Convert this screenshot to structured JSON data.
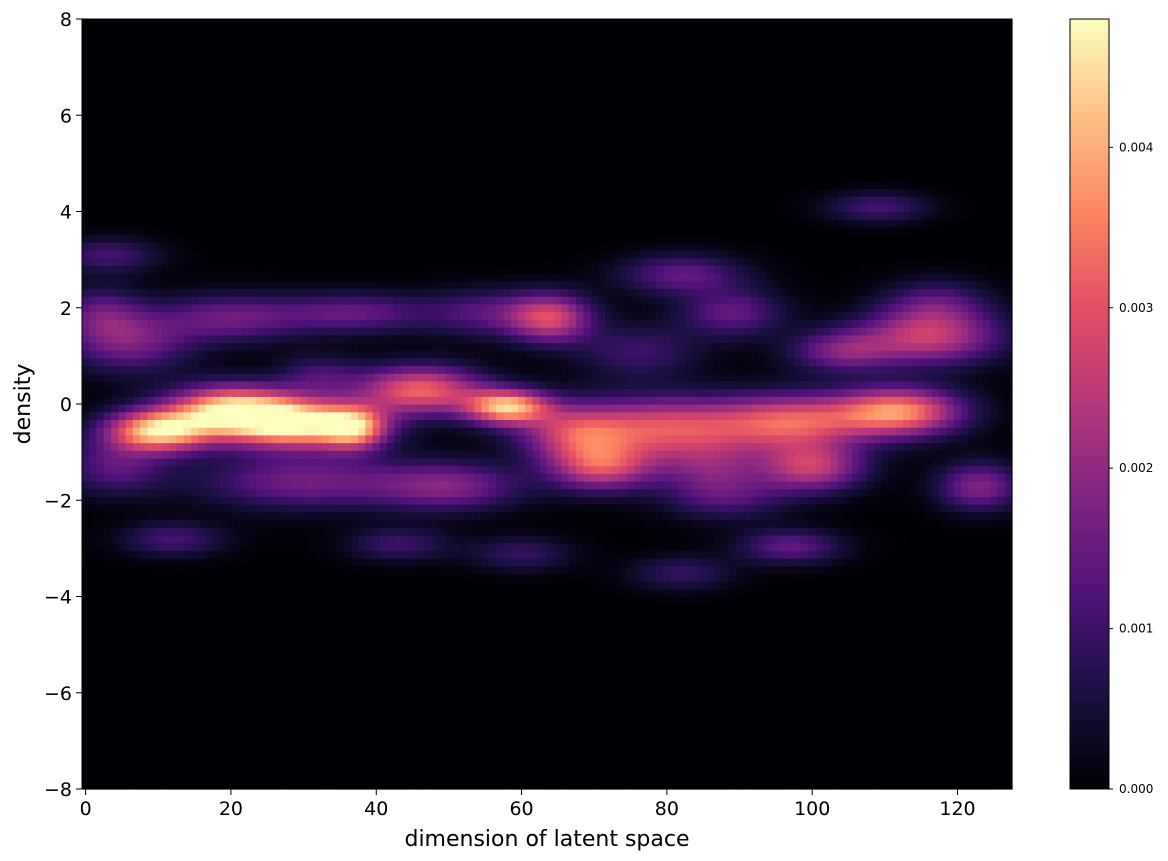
{
  "chart_data": {
    "type": "heatmap",
    "xlabel": "dimension of latent space",
    "ylabel": "density",
    "xlim": [
      -0.5,
      127.5
    ],
    "ylim": [
      -8,
      8
    ],
    "x_ticks": [
      0,
      20,
      40,
      60,
      80,
      100,
      120
    ],
    "y_ticks": [
      -8,
      -6,
      -4,
      -2,
      0,
      2,
      4,
      6,
      8
    ],
    "x_tick_labels": [
      "0",
      "20",
      "40",
      "60",
      "80",
      "100",
      "120"
    ],
    "y_tick_labels": [
      "−8",
      "−6",
      "−4",
      "−2",
      "0",
      "2",
      "4",
      "6",
      "8"
    ],
    "colormap": "magma",
    "colorbar": {
      "range": [
        0,
        0.0048
      ],
      "ticks": [
        0,
        0.001,
        0.002,
        0.003,
        0.004
      ],
      "tick_labels": [
        "0.000",
        "0.001",
        "0.002",
        "0.003",
        "0.004"
      ]
    },
    "density_blobs": [
      {
        "x": 3,
        "y": 3.1,
        "sx": 5,
        "sy": 0.25,
        "amp": 0.0011
      },
      {
        "x": 2,
        "y": 1.9,
        "sx": 4,
        "sy": 0.4,
        "amp": 0.0012
      },
      {
        "x": 6,
        "y": 1.3,
        "sx": 6,
        "sy": 0.45,
        "amp": 0.0016
      },
      {
        "x": 20,
        "y": 1.8,
        "sx": 7,
        "sy": 0.35,
        "amp": 0.0015
      },
      {
        "x": 37,
        "y": 1.9,
        "sx": 7,
        "sy": 0.3,
        "amp": 0.0014
      },
      {
        "x": 32,
        "y": 0.6,
        "sx": 4,
        "sy": 0.3,
        "amp": 0.001
      },
      {
        "x": 64,
        "y": 1.8,
        "sx": 4,
        "sy": 0.35,
        "amp": 0.0026
      },
      {
        "x": 55,
        "y": 1.9,
        "sx": 6,
        "sy": 0.35,
        "amp": 0.0012
      },
      {
        "x": 82,
        "y": 2.7,
        "sx": 6,
        "sy": 0.3,
        "amp": 0.0014
      },
      {
        "x": 89,
        "y": 1.9,
        "sx": 5,
        "sy": 0.35,
        "amp": 0.0014
      },
      {
        "x": 76,
        "y": 1.1,
        "sx": 6,
        "sy": 0.4,
        "amp": 0.001
      },
      {
        "x": 109,
        "y": 4.1,
        "sx": 5,
        "sy": 0.22,
        "amp": 0.0011
      },
      {
        "x": 117,
        "y": 2.1,
        "sx": 5,
        "sy": 0.35,
        "amp": 0.0012
      },
      {
        "x": 116,
        "y": 1.4,
        "sx": 7,
        "sy": 0.4,
        "amp": 0.0025
      },
      {
        "x": 104,
        "y": 1.1,
        "sx": 5,
        "sy": 0.3,
        "amp": 0.0016
      },
      {
        "x": 46,
        "y": 0.3,
        "sx": 6,
        "sy": 0.35,
        "amp": 0.0032
      },
      {
        "x": 58,
        "y": -0.05,
        "sx": 4,
        "sy": 0.25,
        "amp": 0.004
      },
      {
        "x": 10,
        "y": -0.55,
        "sx": 5,
        "sy": 0.3,
        "amp": 0.0043
      },
      {
        "x": 20,
        "y": -0.1,
        "sx": 6,
        "sy": 0.35,
        "amp": 0.004
      },
      {
        "x": 29,
        "y": -0.4,
        "sx": 7,
        "sy": 0.35,
        "amp": 0.0046
      },
      {
        "x": 37,
        "y": -0.5,
        "sx": 3,
        "sy": 0.3,
        "amp": 0.0028
      },
      {
        "x": 80,
        "y": -0.5,
        "sx": 10,
        "sy": 0.45,
        "amp": 0.003
      },
      {
        "x": 98,
        "y": -0.35,
        "sx": 7,
        "sy": 0.4,
        "amp": 0.0026
      },
      {
        "x": 112,
        "y": -0.15,
        "sx": 6,
        "sy": 0.35,
        "amp": 0.0036
      },
      {
        "x": 67,
        "y": -0.6,
        "sx": 5,
        "sy": 0.4,
        "amp": 0.0018
      },
      {
        "x": 4,
        "y": -1.3,
        "sx": 5,
        "sy": 0.4,
        "amp": 0.0013
      },
      {
        "x": 30,
        "y": -1.6,
        "sx": 10,
        "sy": 0.4,
        "amp": 0.0016
      },
      {
        "x": 50,
        "y": -1.7,
        "sx": 7,
        "sy": 0.35,
        "amp": 0.0017
      },
      {
        "x": 71,
        "y": -1.3,
        "sx": 5,
        "sy": 0.35,
        "amp": 0.0026
      },
      {
        "x": 86,
        "y": -1.3,
        "sx": 5,
        "sy": 0.35,
        "amp": 0.0012
      },
      {
        "x": 100,
        "y": -1.3,
        "sx": 5,
        "sy": 0.35,
        "amp": 0.0025
      },
      {
        "x": 123,
        "y": -1.7,
        "sx": 4,
        "sy": 0.35,
        "amp": 0.0018
      },
      {
        "x": 88,
        "y": -1.9,
        "sx": 6,
        "sy": 0.35,
        "amp": 0.0012
      },
      {
        "x": 12,
        "y": -2.8,
        "sx": 5,
        "sy": 0.25,
        "amp": 0.0011
      },
      {
        "x": 43,
        "y": -2.9,
        "sx": 5,
        "sy": 0.25,
        "amp": 0.001
      },
      {
        "x": 60,
        "y": -3.1,
        "sx": 5,
        "sy": 0.25,
        "amp": 0.0009
      },
      {
        "x": 82,
        "y": -3.5,
        "sx": 5,
        "sy": 0.25,
        "amp": 0.0009
      },
      {
        "x": 97,
        "y": -2.95,
        "sx": 5,
        "sy": 0.25,
        "amp": 0.0014
      }
    ]
  }
}
